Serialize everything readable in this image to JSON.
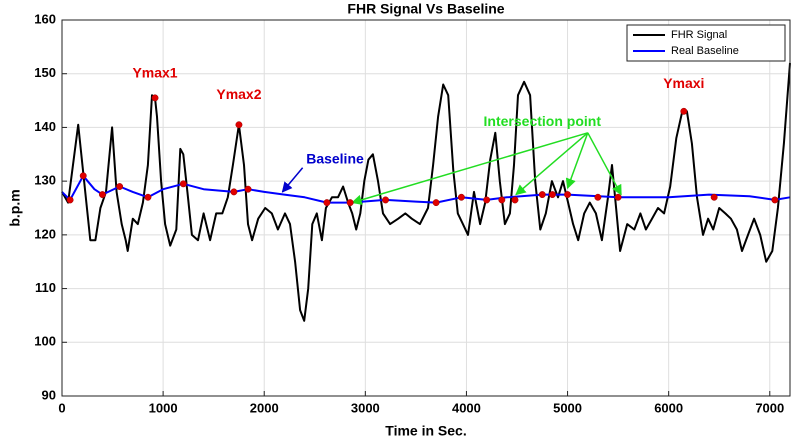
{
  "chart_data": {
    "type": "line",
    "title": "FHR Signal Vs Baseline",
    "xlabel": "Time in Sec.",
    "ylabel": "b.p.m",
    "xlim": [
      0,
      7200
    ],
    "xticks": [
      0,
      1000,
      2000,
      3000,
      4000,
      5000,
      6000,
      7000
    ],
    "ylim": [
      90,
      160
    ],
    "yticks": [
      90,
      100,
      110,
      120,
      130,
      140,
      150,
      160
    ],
    "grid": true,
    "legend": "northeast",
    "series": [
      {
        "name": "FHR Signal",
        "color": "#000000",
        "x": [
          0,
          60,
          160,
          280,
          330,
          380,
          435,
          495,
          540,
          590,
          630,
          650,
          700,
          750,
          800,
          850,
          890,
          920,
          940,
          980,
          1020,
          1070,
          1130,
          1170,
          1200,
          1240,
          1285,
          1345,
          1400,
          1465,
          1525,
          1585,
          1640,
          1690,
          1750,
          1800,
          1840,
          1880,
          1940,
          2010,
          2075,
          2135,
          2205,
          2255,
          2305,
          2355,
          2395,
          2435,
          2475,
          2520,
          2570,
          2610,
          2670,
          2730,
          2780,
          2830,
          2870,
          2910,
          2950,
          2990,
          3030,
          3075,
          3125,
          3175,
          3245,
          3325,
          3395,
          3460,
          3540,
          3620,
          3670,
          3720,
          3770,
          3820,
          3870,
          3915,
          3965,
          4015,
          4075,
          4135,
          4185,
          4235,
          4285,
          4330,
          4380,
          4430,
          4470,
          4510,
          4570,
          4630,
          4680,
          4730,
          4785,
          4845,
          4905,
          4955,
          5005,
          5055,
          5105,
          5165,
          5220,
          5280,
          5340,
          5400,
          5440,
          5480,
          5520,
          5590,
          5660,
          5720,
          5775,
          5835,
          5895,
          5955,
          6015,
          6075,
          6135,
          6180,
          6230,
          6280,
          6340,
          6390,
          6440,
          6500,
          6560,
          6615,
          6675,
          6725,
          6785,
          6845,
          6905,
          6965,
          7025,
          7080,
          7140,
          7200
        ],
        "values": [
          128,
          126,
          140.5,
          119,
          119,
          125,
          128,
          140,
          128,
          122,
          119,
          117,
          123,
          122,
          126,
          133,
          146,
          145.5,
          142,
          130,
          122,
          118,
          121,
          136,
          135,
          128,
          120,
          119,
          124,
          119,
          124,
          124,
          127,
          133,
          140.5,
          133,
          122,
          119,
          123,
          125,
          124,
          121,
          124,
          122,
          115,
          106,
          104,
          110,
          122,
          124,
          119,
          125,
          127,
          127,
          129,
          126,
          124,
          121,
          124,
          130,
          134,
          135,
          130,
          124,
          122,
          123,
          124,
          123,
          122,
          125,
          133,
          142,
          148,
          146,
          132,
          124,
          122,
          120,
          128,
          122,
          126,
          134,
          139,
          130,
          122,
          124,
          133,
          146,
          148.5,
          146,
          130,
          121,
          124,
          130,
          127,
          130,
          126,
          122,
          119,
          124,
          126,
          124,
          119,
          127,
          133,
          125,
          117,
          122,
          121,
          124,
          121,
          123,
          125,
          124,
          129,
          138,
          143,
          143,
          137,
          127,
          120,
          123,
          121,
          125,
          124,
          123,
          121,
          117,
          120,
          123,
          120,
          115,
          117,
          125,
          137,
          152
        ]
      },
      {
        "name": "Real Baseline",
        "color": "#0000ff",
        "x": [
          0,
          80,
          210,
          320,
          400,
          570,
          700,
          850,
          1000,
          1200,
          1400,
          1700,
          1840,
          2000,
          2200,
          2400,
          2620,
          2850,
          3200,
          3500,
          3700,
          3950,
          4200,
          4400,
          4750,
          5000,
          5500,
          6000,
          6400,
          6800,
          7050,
          7200
        ],
        "values": [
          128,
          126.5,
          131,
          128.5,
          127.5,
          129,
          128,
          127,
          128.5,
          129.5,
          128.5,
          128,
          128.5,
          128,
          127.5,
          127,
          126,
          126,
          126.5,
          126.2,
          126,
          127,
          126.5,
          127,
          127.5,
          127.5,
          127,
          127,
          127.5,
          127.2,
          126.5,
          127
        ]
      }
    ],
    "markers": {
      "color": "#e00000",
      "x": [
        80,
        210,
        400,
        570,
        850,
        920,
        1200,
        1700,
        1750,
        1840,
        2620,
        2850,
        3200,
        3700,
        3950,
        4200,
        4350,
        4480,
        4750,
        4850,
        5000,
        5300,
        5500,
        6150,
        6450,
        7050
      ],
      "values": [
        126.5,
        131,
        127.5,
        129,
        127,
        145.5,
        129.5,
        128,
        140.5,
        128.5,
        126,
        126,
        126.5,
        126,
        127,
        126.5,
        126.5,
        126.5,
        127.5,
        127.5,
        127.5,
        127,
        127,
        143,
        127,
        126.5
      ]
    },
    "annotations": [
      {
        "text": "Ymax1",
        "x": 920,
        "y": 150,
        "color": "#e00000"
      },
      {
        "text": "Ymax2",
        "x": 1750,
        "y": 146,
        "color": "#e00000"
      },
      {
        "text": "Ymaxi",
        "x": 6150,
        "y": 148,
        "color": "#e00000"
      },
      {
        "text": "Baseline",
        "x": 2700,
        "y": 134,
        "color": "#0000cc",
        "arrow_from": [
          2380,
          132.5
        ],
        "arrows": [
          [
            2180,
            128
          ]
        ]
      },
      {
        "text": "Intersection point",
        "x": 4750,
        "y": 141,
        "color": "#22dd22",
        "arrow_from": [
          5200,
          139
        ],
        "arrows": [
          [
            2870,
            126
          ],
          [
            4490,
            127.5
          ],
          [
            5000,
            128.7
          ],
          [
            5530,
            127.5
          ]
        ]
      }
    ]
  }
}
